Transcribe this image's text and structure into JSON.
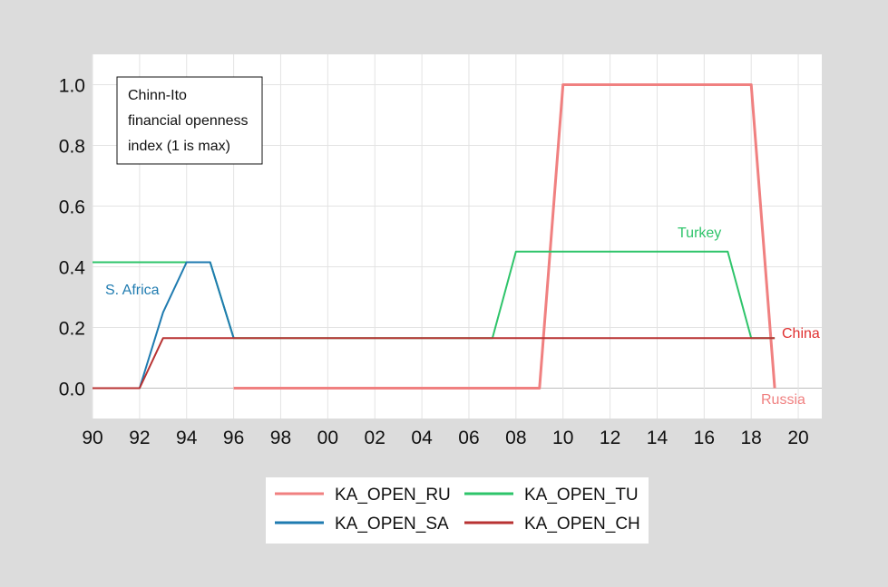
{
  "chart_data": {
    "type": "line",
    "title": "",
    "xlabel": "",
    "ylabel": "",
    "xlim": [
      1990,
      2021
    ],
    "ylim": [
      -0.1,
      1.1
    ],
    "x_ticks": [
      {
        "value": 1990,
        "label": "90"
      },
      {
        "value": 1992,
        "label": "92"
      },
      {
        "value": 1994,
        "label": "94"
      },
      {
        "value": 1996,
        "label": "96"
      },
      {
        "value": 1998,
        "label": "98"
      },
      {
        "value": 2000,
        "label": "00"
      },
      {
        "value": 2002,
        "label": "02"
      },
      {
        "value": 2004,
        "label": "04"
      },
      {
        "value": 2006,
        "label": "06"
      },
      {
        "value": 2008,
        "label": "08"
      },
      {
        "value": 2010,
        "label": "10"
      },
      {
        "value": 2012,
        "label": "12"
      },
      {
        "value": 2014,
        "label": "14"
      },
      {
        "value": 2016,
        "label": "16"
      },
      {
        "value": 2018,
        "label": "18"
      },
      {
        "value": 2020,
        "label": "20"
      }
    ],
    "y_ticks": [
      {
        "value": 0.0,
        "label": "0.0"
      },
      {
        "value": 0.2,
        "label": "0.2"
      },
      {
        "value": 0.4,
        "label": "0.4"
      },
      {
        "value": 0.6,
        "label": "0.6"
      },
      {
        "value": 0.8,
        "label": "0.8"
      },
      {
        "value": 1.0,
        "label": "1.0"
      }
    ],
    "grid": true,
    "legend_position": "bottom",
    "series": [
      {
        "name": "KA_OPEN_RU",
        "color": "#f08080",
        "points": [
          [
            1996,
            0
          ],
          [
            1997,
            0
          ],
          [
            1998,
            0
          ],
          [
            1999,
            0
          ],
          [
            2000,
            0
          ],
          [
            2001,
            0
          ],
          [
            2002,
            0
          ],
          [
            2003,
            0
          ],
          [
            2004,
            0
          ],
          [
            2005,
            0
          ],
          [
            2006,
            0
          ],
          [
            2007,
            0
          ],
          [
            2008,
            0
          ],
          [
            2009,
            0
          ],
          [
            2010,
            1
          ],
          [
            2011,
            1
          ],
          [
            2012,
            1
          ],
          [
            2013,
            1
          ],
          [
            2014,
            1
          ],
          [
            2015,
            1
          ],
          [
            2016,
            1
          ],
          [
            2017,
            1
          ],
          [
            2018,
            1
          ],
          [
            2019,
            0
          ]
        ]
      },
      {
        "name": "KA_OPEN_TU",
        "color": "#2ec46a",
        "points": [
          [
            1990,
            0.415
          ],
          [
            1991,
            0.415
          ],
          [
            1992,
            0.415
          ],
          [
            1993,
            0.415
          ],
          [
            1994,
            0.415
          ],
          [
            1995,
            0.415
          ],
          [
            1996,
            0.165
          ],
          [
            1997,
            0.165
          ],
          [
            1998,
            0.165
          ],
          [
            1999,
            0.165
          ],
          [
            2000,
            0.165
          ],
          [
            2001,
            0.165
          ],
          [
            2002,
            0.165
          ],
          [
            2003,
            0.165
          ],
          [
            2004,
            0.165
          ],
          [
            2005,
            0.165
          ],
          [
            2006,
            0.165
          ],
          [
            2007,
            0.165
          ],
          [
            2008,
            0.45
          ],
          [
            2009,
            0.45
          ],
          [
            2010,
            0.45
          ],
          [
            2011,
            0.45
          ],
          [
            2012,
            0.45
          ],
          [
            2013,
            0.45
          ],
          [
            2014,
            0.45
          ],
          [
            2015,
            0.45
          ],
          [
            2016,
            0.45
          ],
          [
            2017,
            0.45
          ],
          [
            2018,
            0.165
          ],
          [
            2019,
            0.165
          ]
        ]
      },
      {
        "name": "KA_OPEN_SA",
        "color": "#1f7bb0",
        "points": [
          [
            1990,
            0
          ],
          [
            1991,
            0
          ],
          [
            1992,
            0
          ],
          [
            1993,
            0.25
          ],
          [
            1994,
            0.415
          ],
          [
            1995,
            0.415
          ],
          [
            1996,
            0.165
          ]
        ]
      },
      {
        "name": "KA_OPEN_CH",
        "color": "#b83232",
        "points": [
          [
            1990,
            0
          ],
          [
            1991,
            0
          ],
          [
            1992,
            0
          ],
          [
            1993,
            0.165
          ],
          [
            1994,
            0.165
          ],
          [
            1995,
            0.165
          ],
          [
            1996,
            0.165
          ],
          [
            1997,
            0.165
          ],
          [
            1998,
            0.165
          ],
          [
            1999,
            0.165
          ],
          [
            2000,
            0.165
          ],
          [
            2001,
            0.165
          ],
          [
            2002,
            0.165
          ],
          [
            2003,
            0.165
          ],
          [
            2004,
            0.165
          ],
          [
            2005,
            0.165
          ],
          [
            2006,
            0.165
          ],
          [
            2007,
            0.165
          ],
          [
            2008,
            0.165
          ],
          [
            2009,
            0.165
          ],
          [
            2010,
            0.165
          ],
          [
            2011,
            0.165
          ],
          [
            2012,
            0.165
          ],
          [
            2013,
            0.165
          ],
          [
            2014,
            0.165
          ],
          [
            2015,
            0.165
          ],
          [
            2016,
            0.165
          ],
          [
            2017,
            0.165
          ],
          [
            2018,
            0.165
          ],
          [
            2019,
            0.165
          ]
        ]
      }
    ],
    "annotations": [
      {
        "text": "S. Africa",
        "color": "#1f7bb0"
      },
      {
        "text": "Turkey",
        "color": "#2ec46a"
      },
      {
        "text": "China",
        "color": "#e03030"
      },
      {
        "text": "Russia",
        "color": "#f08080"
      }
    ],
    "note_lines": [
      "Chinn-Ito",
      "financial openness",
      "index (1 is max)"
    ]
  }
}
